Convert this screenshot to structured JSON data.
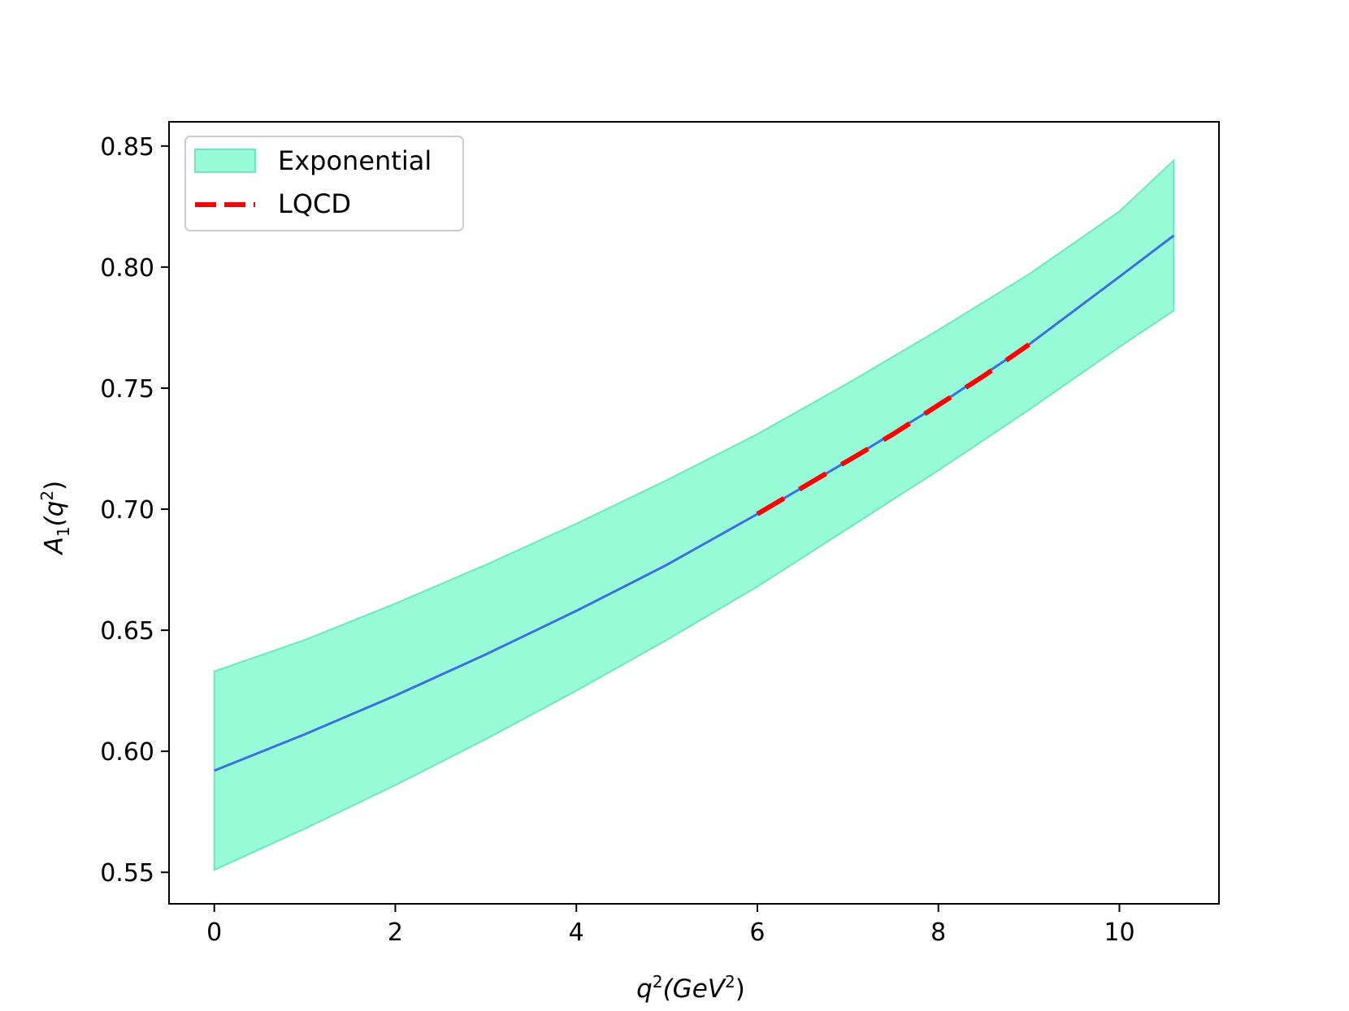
{
  "chart_data": {
    "type": "area",
    "xlabel": {
      "base": "q",
      "sup": "2",
      "open": "(GeV",
      "sup2": "2",
      "close": ")"
    },
    "ylabel": {
      "base": "A",
      "sub": "1",
      "open": "(q",
      "sup": "2",
      "close": ")"
    },
    "xlim": [
      -0.5,
      11.1
    ],
    "ylim": [
      0.537,
      0.86
    ],
    "xticks": [
      0,
      2,
      4,
      6,
      8,
      10
    ],
    "xtick_labels": [
      "0",
      "2",
      "4",
      "6",
      "8",
      "10"
    ],
    "yticks": [
      0.55,
      0.6,
      0.65,
      0.7,
      0.75,
      0.8,
      0.85
    ],
    "ytick_labels": [
      "0.55",
      "0.60",
      "0.65",
      "0.70",
      "0.75",
      "0.80",
      "0.85"
    ],
    "grid": false,
    "legend_position": "top-left",
    "legend": [
      {
        "label": "Exponential",
        "kind": "band",
        "color": "#98fbd8"
      },
      {
        "label": "LQCD",
        "kind": "dashed-line",
        "color": "#ff0000"
      }
    ],
    "x": [
      0,
      1,
      2,
      3,
      4,
      5,
      6,
      7,
      8,
      9,
      10,
      10.6
    ],
    "series": [
      {
        "name": "Exponential",
        "kind": "band",
        "color": "#98fbd8",
        "edge_color": "#6ee8c0",
        "lower": [
          0.551,
          0.568,
          0.586,
          0.605,
          0.625,
          0.646,
          0.668,
          0.692,
          0.716,
          0.741,
          0.767,
          0.782
        ],
        "upper": [
          0.633,
          0.646,
          0.661,
          0.677,
          0.694,
          0.712,
          0.731,
          0.752,
          0.774,
          0.797,
          0.823,
          0.844
        ]
      },
      {
        "kind": "central-line",
        "color": "#3d6fe0",
        "values": [
          0.592,
          0.607,
          0.623,
          0.64,
          0.658,
          0.677,
          0.698,
          0.72,
          0.743,
          0.768,
          0.796,
          0.813
        ]
      },
      {
        "name": "LQCD",
        "kind": "dashed-line",
        "color": "#ff0000",
        "x": [
          6,
          6.5,
          7,
          7.5,
          8,
          8.5,
          9
        ],
        "values": [
          0.698,
          0.709,
          0.72,
          0.731,
          0.743,
          0.755,
          0.768
        ]
      }
    ]
  }
}
